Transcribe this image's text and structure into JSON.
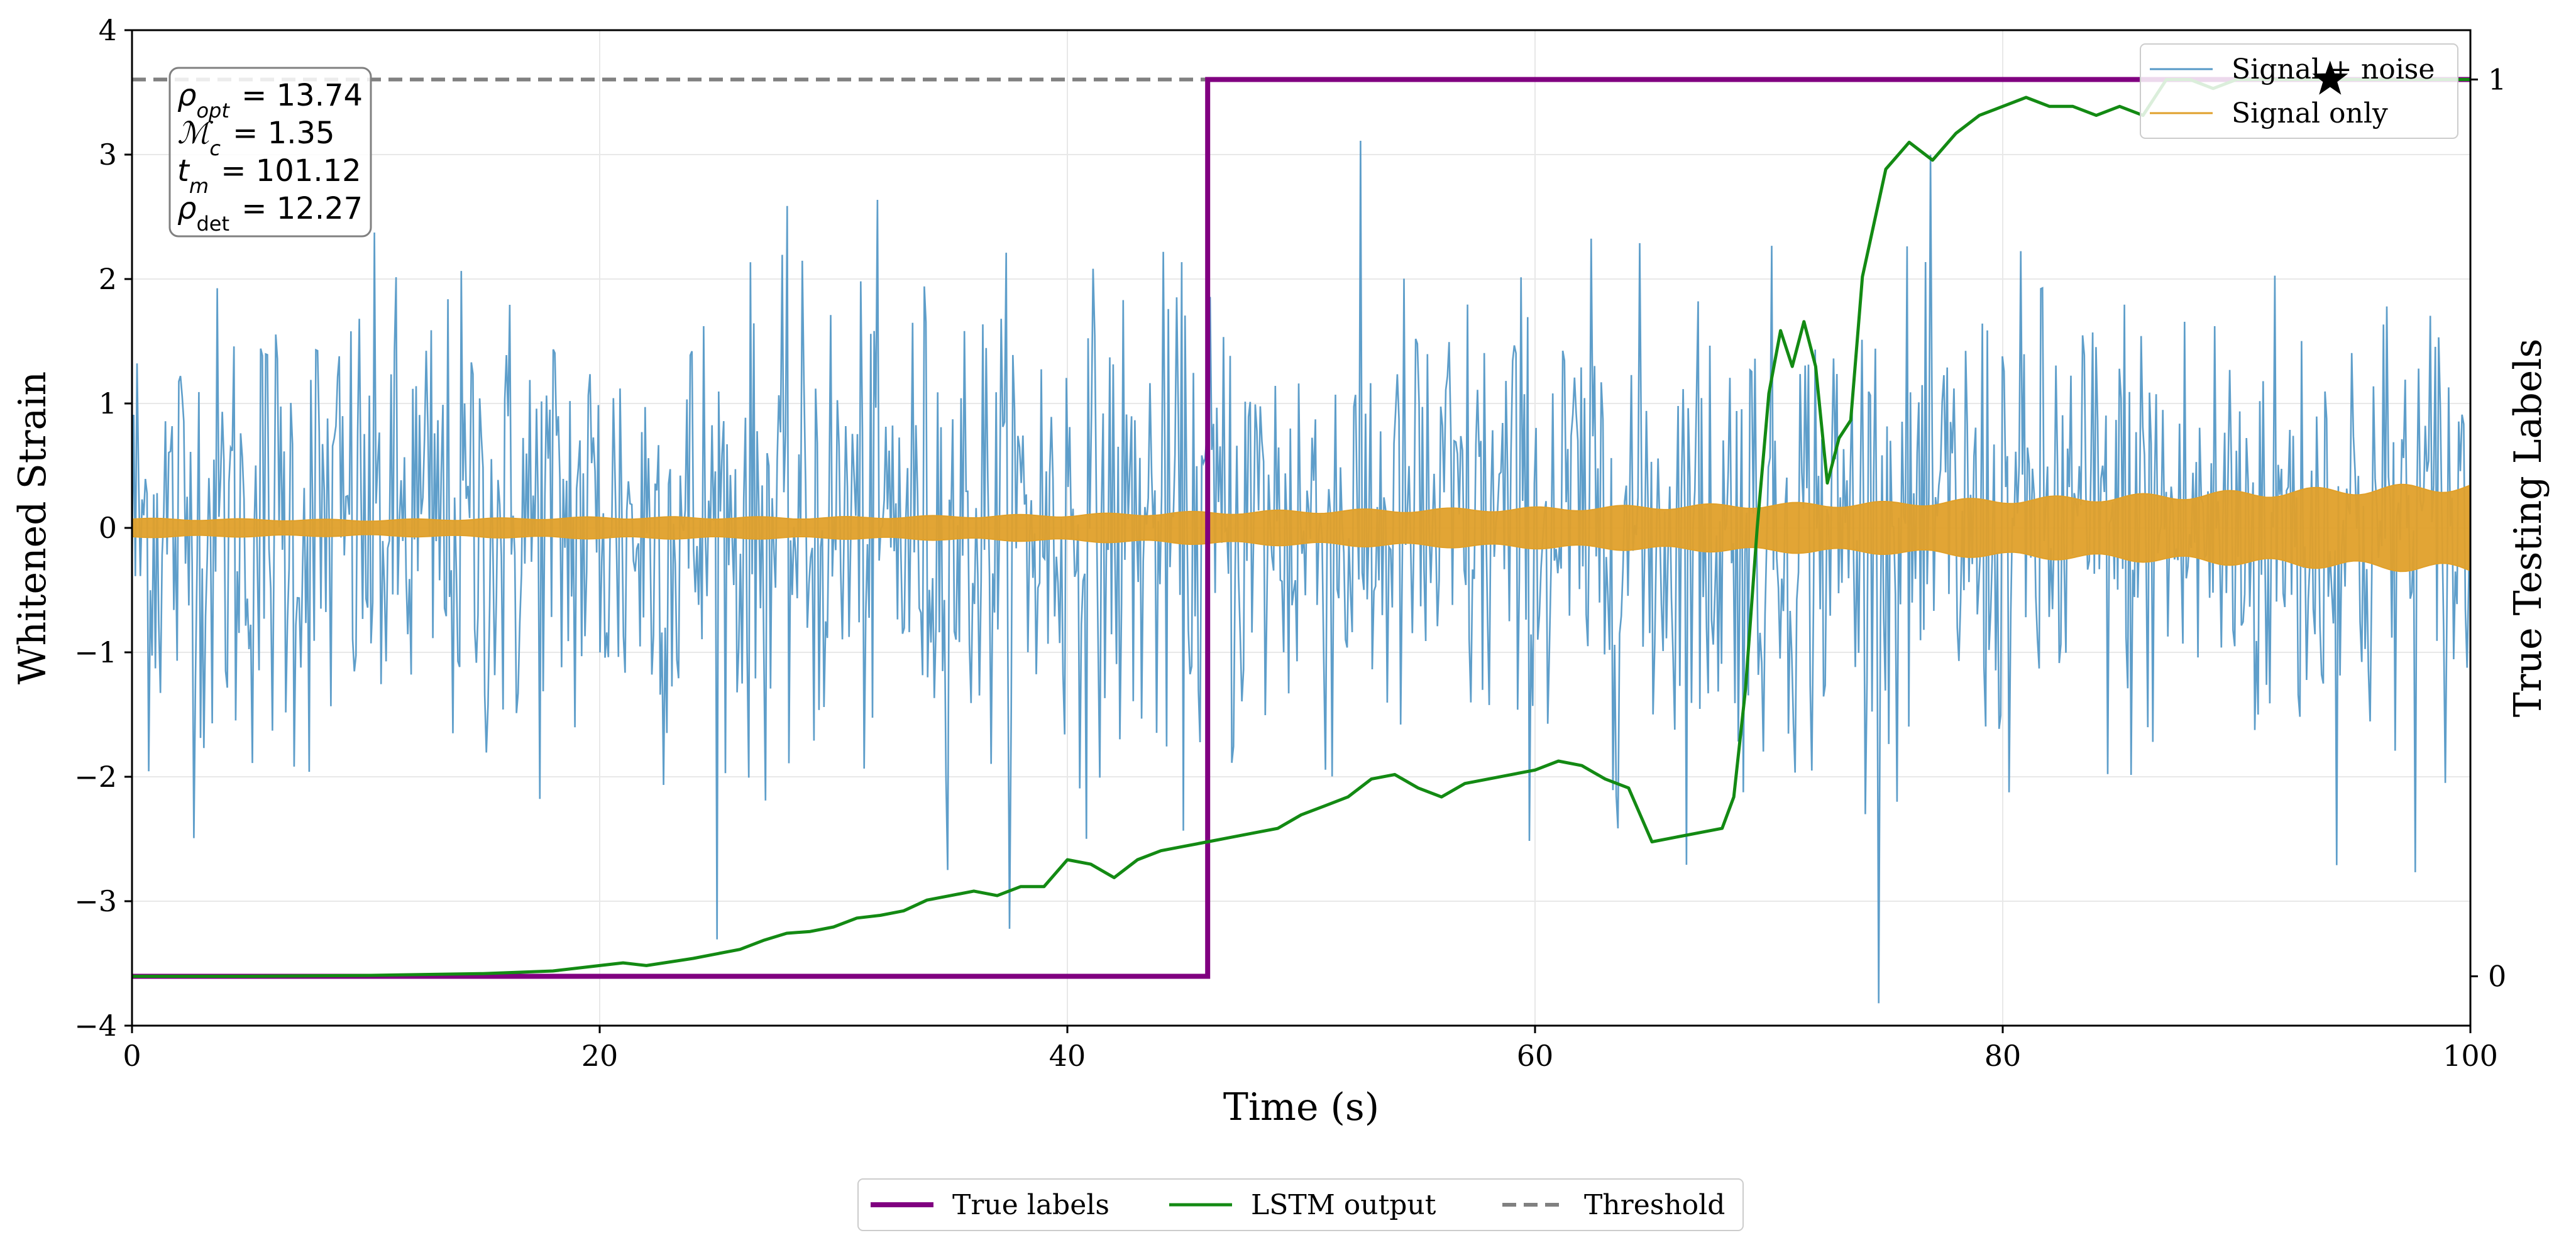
{
  "chart_data": {
    "type": "line",
    "xlabel": "Time (s)",
    "ylabel": "Whitened Strain",
    "ylabel_right": "True Testing Labels",
    "xlim": [
      0,
      100
    ],
    "ylim": [
      -4,
      4
    ],
    "ylim_right": [
      -0.055,
      1.055
    ],
    "xticks": [
      0,
      20,
      40,
      60,
      80,
      100
    ],
    "yticks": [
      -4,
      -3,
      -2,
      -1,
      0,
      1,
      2,
      3,
      4
    ],
    "yticks_right": [
      0,
      1
    ],
    "grid": true,
    "annotation": {
      "rho_opt": {
        "symbol": "ρ",
        "sub": "opt",
        "value": "13.74"
      },
      "chirp_mass": {
        "symbol": "ℳ",
        "sub": "c",
        "value": "1.35"
      },
      "t_merge": {
        "symbol": "t",
        "sub": "m",
        "value": "101.12"
      },
      "rho_det": {
        "symbol": "ρ",
        "sub": "det",
        "value": "12.27"
      }
    },
    "star_marker": {
      "x": 94,
      "y_right": 1.0
    },
    "series": [
      {
        "name": "Signal + noise",
        "axis": "left",
        "color": "#5599c7",
        "description": "whitened detector noise, approx standard normal with amplitude up to about 3.6",
        "noise_sigma": 1.0,
        "n_points": 1400
      },
      {
        "name": "Signal only",
        "axis": "left",
        "color": "#e0a02a",
        "x": [
          0,
          10,
          20,
          30,
          40,
          46,
          50,
          60,
          70,
          75,
          80,
          85,
          90,
          95,
          100
        ],
        "amplitude": [
          0.07,
          0.06,
          0.08,
          0.08,
          0.1,
          0.12,
          0.13,
          0.15,
          0.18,
          0.19,
          0.22,
          0.24,
          0.27,
          0.3,
          0.33
        ]
      },
      {
        "name": "True labels",
        "axis": "right",
        "color": "#800080",
        "x": [
          0,
          46,
          46,
          100
        ],
        "y": [
          0,
          0,
          1,
          1
        ]
      },
      {
        "name": "LSTM output",
        "axis": "right",
        "color": "#138a13",
        "x": [
          0,
          5,
          10,
          15,
          18,
          20,
          21,
          22,
          24,
          25,
          26,
          27,
          28,
          29,
          30,
          31,
          32,
          33,
          34,
          35,
          36,
          37,
          38,
          39,
          40,
          41,
          42,
          43,
          44,
          45,
          46,
          47,
          48,
          49,
          50,
          51,
          52,
          53,
          54,
          55,
          56,
          57,
          58,
          59,
          60,
          61,
          62,
          63,
          64,
          65,
          66,
          67,
          68,
          68.5,
          69,
          69.5,
          70,
          70.5,
          71,
          71.5,
          72,
          72.5,
          73,
          73.5,
          74,
          75,
          76,
          77,
          78,
          79,
          80,
          81,
          82,
          83,
          84,
          85,
          86,
          87,
          88,
          89,
          90,
          91,
          92,
          93,
          94,
          95,
          96,
          97,
          98,
          99,
          100
        ],
        "y": [
          0.0,
          0.0,
          0.001,
          0.003,
          0.006,
          0.012,
          0.015,
          0.012,
          0.02,
          0.025,
          0.03,
          0.04,
          0.048,
          0.05,
          0.055,
          0.065,
          0.068,
          0.073,
          0.085,
          0.09,
          0.095,
          0.09,
          0.1,
          0.1,
          0.13,
          0.125,
          0.11,
          0.13,
          0.14,
          0.145,
          0.15,
          0.155,
          0.16,
          0.165,
          0.18,
          0.19,
          0.2,
          0.22,
          0.225,
          0.21,
          0.2,
          0.215,
          0.22,
          0.225,
          0.23,
          0.24,
          0.235,
          0.22,
          0.21,
          0.15,
          0.155,
          0.16,
          0.165,
          0.2,
          0.32,
          0.5,
          0.65,
          0.72,
          0.68,
          0.73,
          0.68,
          0.55,
          0.6,
          0.62,
          0.78,
          0.9,
          0.93,
          0.91,
          0.94,
          0.96,
          0.97,
          0.98,
          0.97,
          0.97,
          0.96,
          0.97,
          0.96,
          1.0,
          1.0,
          0.99,
          1.0,
          1.0,
          1.0,
          1.0,
          1.0,
          1.0,
          1.0,
          1.0,
          1.0,
          1.0,
          1.0
        ]
      },
      {
        "name": "Threshold",
        "axis": "right",
        "color": "#808080",
        "style": "dashed",
        "y": 1.0
      }
    ],
    "legend_top": [
      "Signal + noise",
      "Signal only"
    ],
    "legend_bottom": [
      "True labels",
      "LSTM output",
      "Threshold"
    ]
  }
}
